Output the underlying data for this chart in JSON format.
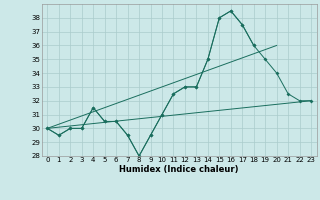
{
  "title": "",
  "xlabel": "Humidex (Indice chaleur)",
  "background_color": "#cce8e8",
  "grid_color": "#aacccc",
  "line_color": "#1a6e5e",
  "xlim": [
    -0.5,
    23.5
  ],
  "ylim": [
    28,
    39
  ],
  "yticks": [
    28,
    29,
    30,
    31,
    32,
    33,
    34,
    35,
    36,
    37,
    38
  ],
  "xticks": [
    0,
    1,
    2,
    3,
    4,
    5,
    6,
    7,
    8,
    9,
    10,
    11,
    12,
    13,
    14,
    15,
    16,
    17,
    18,
    19,
    20,
    21,
    22,
    23
  ],
  "series1": [
    30.0,
    29.5,
    30.0,
    30.0,
    31.5,
    30.5,
    30.5,
    29.5,
    28.0,
    29.5,
    31.0,
    32.5,
    33.0,
    33.0,
    35.0,
    38.0,
    38.5,
    37.5,
    36.0,
    null,
    null,
    null,
    null,
    null
  ],
  "series2": [
    30.0,
    29.5,
    30.0,
    30.0,
    31.5,
    30.5,
    30.5,
    29.5,
    28.0,
    29.5,
    31.0,
    32.5,
    33.0,
    33.0,
    35.0,
    38.0,
    38.5,
    37.5,
    36.0,
    35.0,
    34.0,
    32.5,
    32.0,
    32.0
  ],
  "series3_x": [
    0,
    23
  ],
  "series3_y": [
    30.0,
    32.0
  ],
  "series4_x": [
    0,
    20
  ],
  "series4_y": [
    30.0,
    36.0
  ]
}
